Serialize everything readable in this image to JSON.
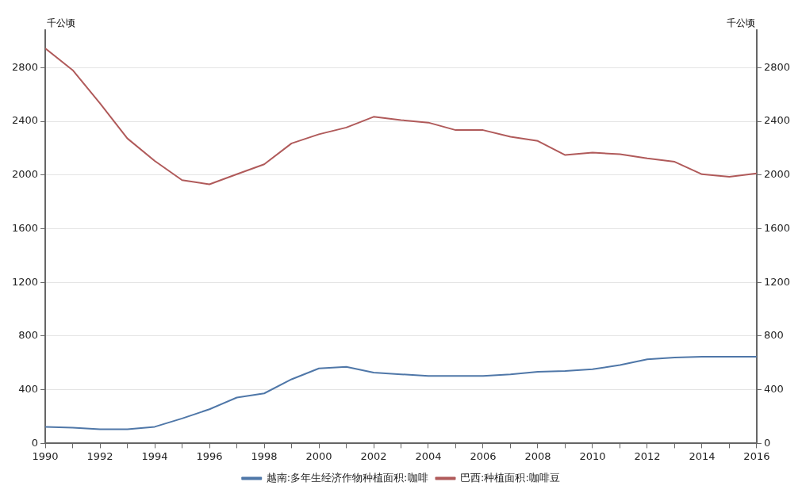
{
  "chart_data": {
    "type": "line",
    "ylabel": "千公顷",
    "y2label": "千公顷",
    "x": [
      1990,
      1991,
      1992,
      1993,
      1994,
      1995,
      1996,
      1997,
      1998,
      1999,
      2000,
      2001,
      2002,
      2003,
      2004,
      2005,
      2006,
      2007,
      2008,
      2009,
      2010,
      2011,
      2012,
      2013,
      2014,
      2015,
      2016
    ],
    "xlim": [
      1990,
      2016
    ],
    "xticks": [
      1990,
      1992,
      1994,
      1996,
      1998,
      2000,
      2002,
      2004,
      2006,
      2008,
      2010,
      2012,
      2014,
      2016
    ],
    "ylim": [
      0,
      3080
    ],
    "yticks": [
      0,
      400,
      800,
      1200,
      1600,
      2000,
      2400,
      2800
    ],
    "y2lim": [
      0,
      3080
    ],
    "y2ticks": [
      0,
      400,
      800,
      1200,
      1600,
      2000,
      2400,
      2800
    ],
    "grid": "y",
    "legend": "bottom",
    "marker": "none",
    "line_style": "solid",
    "series": [
      {
        "name": "越南:多年生经济作物种植面积:咖啡",
        "color": "#4f77a8",
        "values": [
          124,
          118,
          106,
          106,
          124,
          186,
          255,
          342,
          373,
          478,
          559,
          571,
          528,
          515,
          503,
          503,
          503,
          515,
          534,
          540,
          553,
          584,
          627,
          640,
          646,
          646,
          646
        ]
      },
      {
        "name": "巴西:种植面积:咖啡豆",
        "color": "#b05a5a",
        "values": [
          2944,
          2782,
          2534,
          2273,
          2105,
          1962,
          1931,
          2006,
          2080,
          2236,
          2304,
          2354,
          2434,
          2410,
          2391,
          2335,
          2335,
          2285,
          2254,
          2149,
          2167,
          2155,
          2124,
          2099,
          2006,
          1987,
          2012
        ]
      }
    ]
  }
}
